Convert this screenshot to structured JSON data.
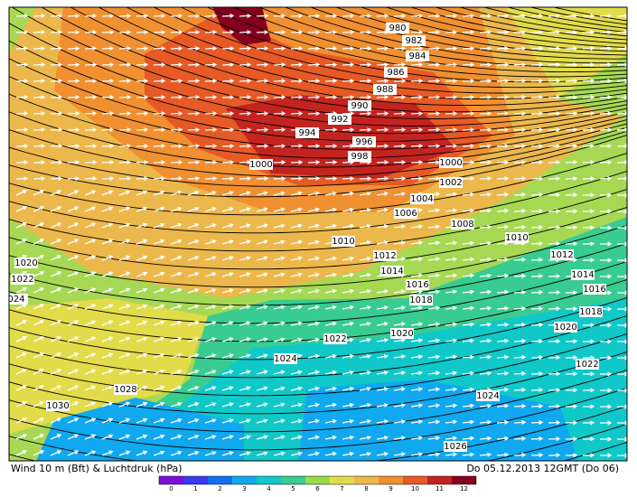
{
  "map": {
    "isobar_labels": [
      "980",
      "982",
      "984",
      "986",
      "988",
      "990",
      "992",
      "994",
      "996",
      "998",
      "1000",
      "1000",
      "1002",
      "1004",
      "1006",
      "1008",
      "1010",
      "1010",
      "1012",
      "1012",
      "1014",
      "1014",
      "1016",
      "1016",
      "1018",
      "1018",
      "1020",
      "1022",
      "024",
      "1020",
      "1020",
      "1022",
      "1022",
      "1024",
      "1024",
      "1028",
      "1030",
      "1026"
    ]
  },
  "footer": {
    "left": "Wind  10 m  (Bft)  &  Luchtdruk  (hPa)",
    "right": "Do 05.12.2013 12GMT (Do 06)"
  },
  "legend": {
    "ticks": [
      "0",
      "1",
      "2",
      "3",
      "4",
      "5",
      "6",
      "7",
      "8",
      "9",
      "10",
      "11",
      "12"
    ],
    "colors": [
      "#7a10d8",
      "#3a3af0",
      "#1070f0",
      "#10a8ee",
      "#10c8c8",
      "#38cc90",
      "#98dc48",
      "#e2dc4a",
      "#ecb84c",
      "#f09030",
      "#e65a26",
      "#c42420",
      "#86001e"
    ]
  }
}
